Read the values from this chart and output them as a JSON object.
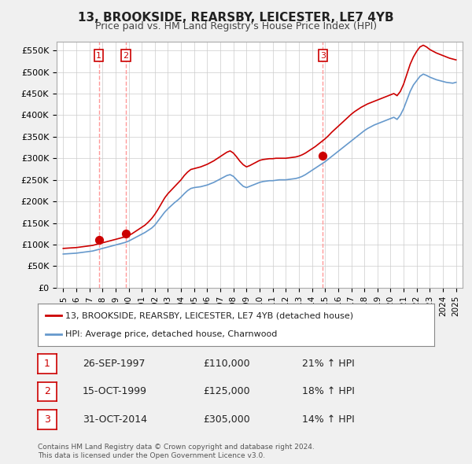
{
  "title": "13, BROOKSIDE, REARSBY, LEICESTER, LE7 4YB",
  "subtitle": "Price paid vs. HM Land Registry's House Price Index (HPI)",
  "legend_line1": "13, BROOKSIDE, REARSBY, LEICESTER, LE7 4YB (detached house)",
  "legend_line2": "HPI: Average price, detached house, Charnwood",
  "footer1": "Contains HM Land Registry data © Crown copyright and database right 2024.",
  "footer2": "This data is licensed under the Open Government Licence v3.0.",
  "purchases": [
    {
      "label": "1",
      "date": "26-SEP-1997",
      "price": 110000,
      "pct": "21%",
      "year": 1997.73
    },
    {
      "label": "2",
      "date": "15-OCT-1999",
      "price": 125000,
      "pct": "18%",
      "year": 1999.79
    },
    {
      "label": "3",
      "date": "31-OCT-2014",
      "price": 305000,
      "pct": "14%",
      "year": 2014.83
    }
  ],
  "red_line_color": "#cc0000",
  "blue_line_color": "#6699cc",
  "marker_color": "#cc0000",
  "dashed_line_color": "#ff9999",
  "label_box_color": "#cc0000",
  "ylim": [
    0,
    570000
  ],
  "yticks": [
    0,
    50000,
    100000,
    150000,
    200000,
    250000,
    300000,
    350000,
    400000,
    450000,
    500000,
    550000
  ],
  "ytick_labels": [
    "£0",
    "£50K",
    "£100K",
    "£150K",
    "£200K",
    "£250K",
    "£300K",
    "£350K",
    "£400K",
    "£450K",
    "£500K",
    "£550K"
  ],
  "xlim_start": 1994.5,
  "xlim_end": 2025.5,
  "background_color": "#f0f0f0",
  "plot_bg_color": "#ffffff",
  "grid_color": "#cccccc"
}
